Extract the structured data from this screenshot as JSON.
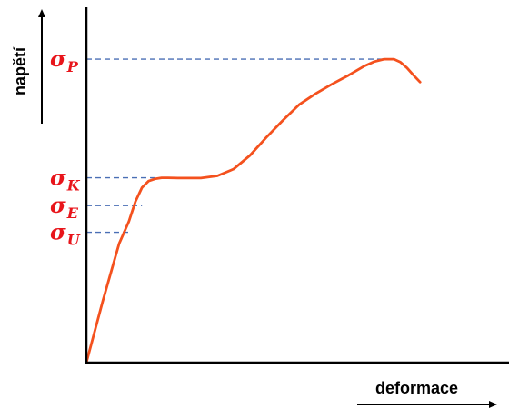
{
  "chart_data": {
    "type": "line",
    "title": "",
    "xlabel": "deformace",
    "ylabel": "napětí",
    "xlim": [
      0,
      100
    ],
    "ylim": [
      0,
      100
    ],
    "grid": false,
    "legend": "none",
    "colors": {
      "curve": "#f4511e",
      "axes": "#000000",
      "guides": "#4a6fb5",
      "labels": "#e8151b"
    },
    "series": [
      {
        "values_x": [
          0,
          5,
          10,
          13,
          15,
          17,
          19,
          21,
          23,
          25,
          28,
          35,
          40,
          45,
          50,
          55,
          60,
          65,
          70,
          75,
          80,
          85,
          88,
          91,
          94,
          96,
          98,
          100,
          102
        ],
        "values_y": [
          0,
          22.5,
          43.6,
          51.8,
          59.1,
          64.2,
          66.6,
          67.4,
          67.8,
          67.8,
          67.7,
          67.7,
          68.5,
          71.0,
          76.0,
          82.6,
          88.8,
          94.6,
          98.6,
          102.1,
          105.3,
          108.8,
          110.4,
          111.3,
          111.3,
          110.2,
          108.1,
          105.4,
          102.9
        ]
      }
    ],
    "levels": [
      {
        "label": "σ",
        "sub": "P",
        "y": 111.3,
        "x_end": 94
      },
      {
        "label": "σ",
        "sub": "K",
        "y": 67.8,
        "x_end": 25
      },
      {
        "label": "σ",
        "sub": "E",
        "y": 57.6,
        "x_end": 17
      },
      {
        "label": "σ",
        "sub": "U",
        "y": 47.8,
        "x_end": 13
      }
    ]
  }
}
